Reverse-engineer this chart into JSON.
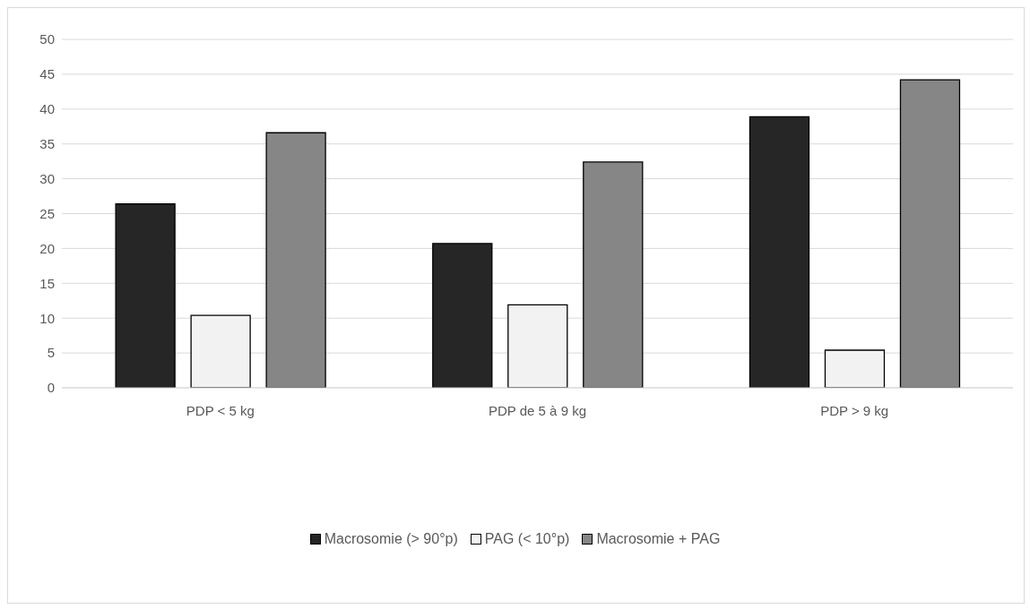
{
  "chart_data": {
    "type": "bar",
    "categories": [
      "PDP < 5 kg",
      "PDP de 5 à  9 kg",
      "PDP  > 9 kg"
    ],
    "series": [
      {
        "name": "Macrosomie (> 90°p)",
        "color": "#262626",
        "values": [
          26.4,
          20.7,
          38.9
        ]
      },
      {
        "name": "PAG (< 10°p)",
        "color": "#f2f2f2",
        "values": [
          10.4,
          11.9,
          5.4
        ]
      },
      {
        "name": "Macrosomie + PAG",
        "color": "#868686",
        "values": [
          36.6,
          32.4,
          44.2
        ]
      }
    ],
    "ylim": [
      0,
      50
    ],
    "yticks": [
      0,
      5,
      10,
      15,
      20,
      25,
      30,
      35,
      40,
      45,
      50
    ],
    "grid": "y",
    "legend": "bottom"
  }
}
